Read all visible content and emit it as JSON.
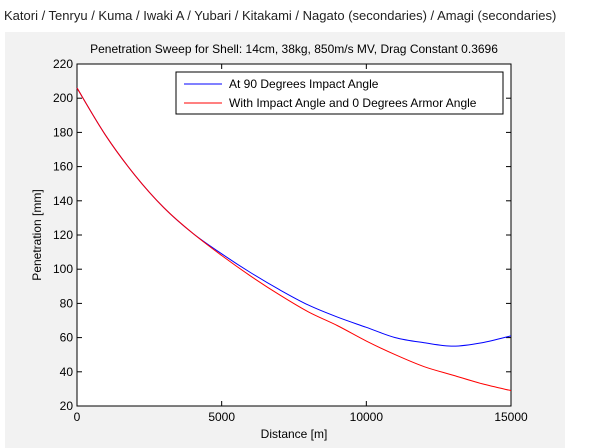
{
  "caption": "Katori / Tenryu / Kuma / Iwaki A / Yubari / Kitakami / Nagato (secondaries) / Amagi (secondaries)",
  "colors": {
    "figure_bg": "#f2f2f2",
    "axes_bg": "#ffffff",
    "series_blue": "#0000ff",
    "series_red": "#ff0000"
  },
  "chart_data": {
    "type": "line",
    "title": "Penetration Sweep for Shell: 14cm, 38kg, 850m/s MV, Drag Constant 0.3696",
    "xlabel": "Distance [m]",
    "ylabel": "Penetration [mm]",
    "xlim": [
      0,
      15000
    ],
    "ylim": [
      20,
      220
    ],
    "xticks": [
      0,
      5000,
      10000,
      15000
    ],
    "yticks": [
      20,
      40,
      60,
      80,
      100,
      120,
      140,
      160,
      180,
      200,
      220
    ],
    "xtick_labels": [
      "0",
      "5000",
      "10000",
      "15000"
    ],
    "ytick_labels": [
      "20",
      "40",
      "60",
      "80",
      "100",
      "120",
      "140",
      "160",
      "180",
      "200",
      "220"
    ],
    "grid": false,
    "legend_position": "top-right",
    "series": [
      {
        "name": "At 90 Degrees Impact Angle",
        "color": "#0000ff",
        "x": [
          0,
          1000,
          2000,
          3000,
          4000,
          5000,
          6000,
          7000,
          8000,
          9000,
          10000,
          11000,
          12000,
          13000,
          14000,
          15000
        ],
        "y": [
          206,
          178,
          155,
          136,
          121,
          109,
          98,
          88,
          79,
          72,
          66,
          60,
          57,
          55,
          57,
          61
        ]
      },
      {
        "name": "With Impact Angle and 0 Degrees Armor Angle",
        "color": "#ff0000",
        "x": [
          0,
          1000,
          2000,
          3000,
          4000,
          5000,
          6000,
          7000,
          8000,
          9000,
          10000,
          11000,
          12000,
          13000,
          14000,
          15000
        ],
        "y": [
          206,
          178,
          155,
          136,
          121,
          108,
          96,
          85,
          75,
          67,
          58,
          50,
          43,
          38,
          33,
          29
        ]
      }
    ]
  }
}
